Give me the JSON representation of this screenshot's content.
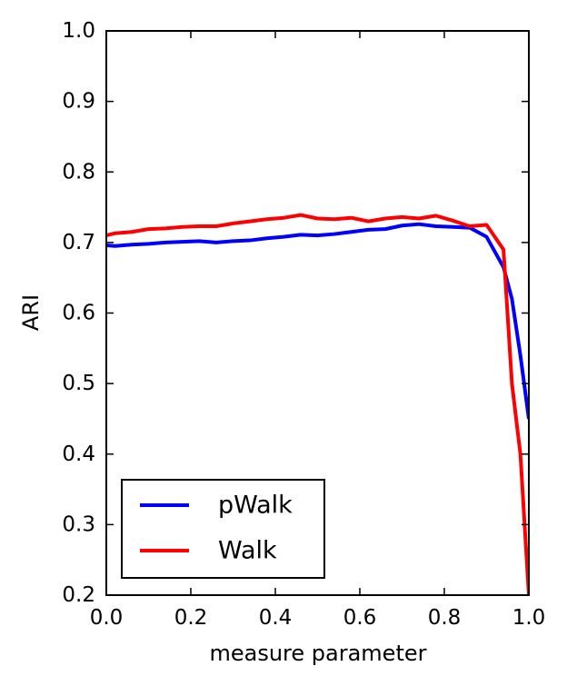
{
  "chart_data": {
    "type": "line",
    "title": "",
    "xlabel": "measure parameter",
    "ylabel": "ARI",
    "xlim": [
      0.0,
      1.0
    ],
    "ylim": [
      0.2,
      1.0
    ],
    "xticks": [
      0.0,
      0.2,
      0.4,
      0.6,
      0.8,
      1.0
    ],
    "yticks": [
      0.2,
      0.3,
      0.4,
      0.5,
      0.6,
      0.7,
      0.8,
      0.9,
      1.0
    ],
    "xtick_labels": [
      "0.0",
      "0.2",
      "0.4",
      "0.6",
      "0.8",
      "1.0"
    ],
    "ytick_labels": [
      "0.2",
      "0.3",
      "0.4",
      "0.5",
      "0.6",
      "0.7",
      "0.8",
      "0.9",
      "1.0"
    ],
    "grid": false,
    "legend_position": "lower-left",
    "series": [
      {
        "name": "pWalk",
        "color": "#0000ff",
        "x": [
          0.0,
          0.02,
          0.06,
          0.1,
          0.14,
          0.18,
          0.22,
          0.26,
          0.3,
          0.34,
          0.38,
          0.42,
          0.46,
          0.5,
          0.54,
          0.58,
          0.62,
          0.66,
          0.7,
          0.74,
          0.78,
          0.82,
          0.86,
          0.9,
          0.94,
          0.96,
          0.98,
          1.0
        ],
        "y": [
          0.696,
          0.695,
          0.697,
          0.698,
          0.7,
          0.701,
          0.702,
          0.7,
          0.702,
          0.703,
          0.706,
          0.708,
          0.711,
          0.71,
          0.712,
          0.715,
          0.718,
          0.719,
          0.724,
          0.726,
          0.723,
          0.722,
          0.721,
          0.708,
          0.665,
          0.62,
          0.54,
          0.45
        ]
      },
      {
        "name": "Walk",
        "color": "#ff0000",
        "x": [
          0.0,
          0.02,
          0.06,
          0.1,
          0.14,
          0.18,
          0.22,
          0.26,
          0.3,
          0.34,
          0.38,
          0.42,
          0.46,
          0.5,
          0.54,
          0.58,
          0.62,
          0.66,
          0.7,
          0.74,
          0.78,
          0.82,
          0.86,
          0.9,
          0.94,
          0.96,
          0.98,
          1.0
        ],
        "y": [
          0.71,
          0.713,
          0.715,
          0.719,
          0.72,
          0.722,
          0.723,
          0.723,
          0.727,
          0.73,
          0.733,
          0.735,
          0.739,
          0.734,
          0.733,
          0.735,
          0.73,
          0.734,
          0.736,
          0.734,
          0.738,
          0.731,
          0.723,
          0.725,
          0.69,
          0.5,
          0.4,
          0.2
        ]
      }
    ]
  }
}
